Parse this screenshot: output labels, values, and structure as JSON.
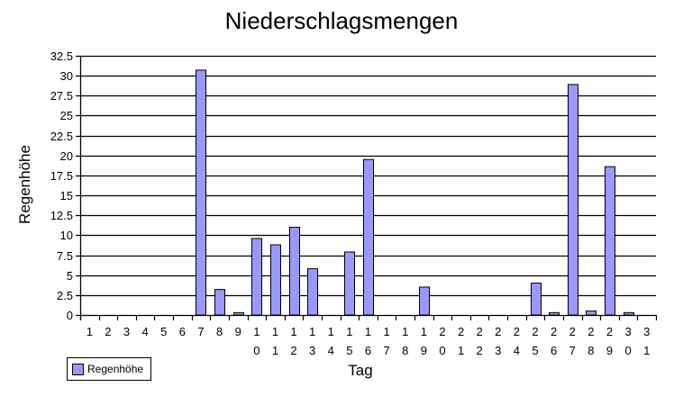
{
  "chart_data": {
    "type": "bar",
    "title": "Niederschlagsmengen",
    "xlabel": "Tag",
    "ylabel": "Regenhöhe",
    "ylim": [
      0,
      32.5
    ],
    "ytick_step": 2.5,
    "yticks": [
      "0",
      "2.5",
      "5",
      "7.5",
      "10",
      "12.5",
      "15",
      "17.5",
      "20",
      "22.5",
      "25",
      "27.5",
      "30",
      "32.5"
    ],
    "grid": true,
    "legend_position": "bottom-left",
    "categories": [
      "1",
      "2",
      "3",
      "4",
      "5",
      "6",
      "7",
      "8",
      "9",
      "10",
      "11",
      "12",
      "13",
      "14",
      "15",
      "16",
      "17",
      "18",
      "19",
      "20",
      "21",
      "22",
      "23",
      "24",
      "25",
      "26",
      "27",
      "28",
      "29",
      "30",
      "31"
    ],
    "series": [
      {
        "name": "Regenhöhe",
        "color": "#9999ff",
        "values": [
          0,
          0,
          0,
          0,
          0,
          0,
          30.7,
          3.2,
          0.3,
          9.6,
          8.8,
          11.0,
          5.8,
          0,
          7.9,
          19.5,
          0,
          0,
          3.5,
          0,
          0,
          0,
          0,
          0,
          4.0,
          0.3,
          28.9,
          0.5,
          18.6,
          0.3,
          0
        ]
      }
    ]
  },
  "colors": {
    "bar_fill": "#9999ff",
    "bar_stroke": "#000000",
    "grid": "#000000",
    "background": "#ffffff"
  },
  "legend": {
    "label": "Regenhöhe"
  }
}
